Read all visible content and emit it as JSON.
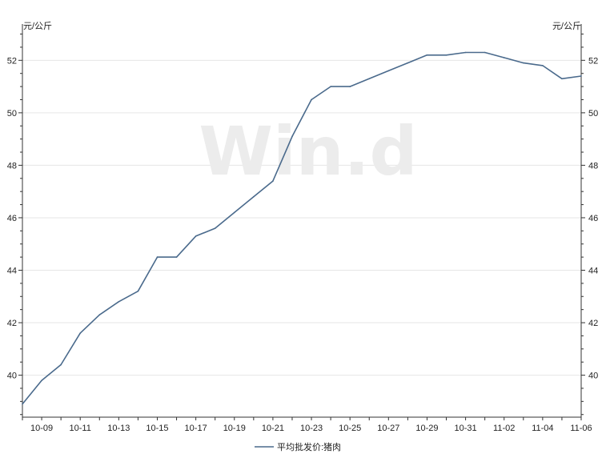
{
  "chart_data": {
    "type": "line",
    "watermark": "Win.d",
    "left_unit": "元/公斤",
    "right_unit": "元/公斤",
    "ylim": [
      38.4,
      53.2
    ],
    "yticks": [
      40,
      42,
      44,
      46,
      48,
      50,
      52
    ],
    "ytick_labels": [
      "40",
      "42",
      "44",
      "46",
      "48",
      "50",
      "52"
    ],
    "grid": true,
    "legend_position": "bottom",
    "xtick_labels": [
      "10-09",
      "10-11",
      "10-13",
      "10-15",
      "10-17",
      "10-19",
      "10-21",
      "10-23",
      "10-25",
      "10-27",
      "10-29",
      "10-31",
      "11-02",
      "11-04",
      "11-06"
    ],
    "series": [
      {
        "name": "平均批发价:猪肉",
        "color": "#4a6a8c",
        "x": [
          "10-08",
          "10-09",
          "10-10",
          "10-11",
          "10-12",
          "10-13",
          "10-14",
          "10-15",
          "10-16",
          "10-17",
          "10-18",
          "10-19",
          "10-20",
          "10-21",
          "10-22",
          "10-23",
          "10-24",
          "10-25",
          "10-26",
          "10-27",
          "10-28",
          "10-29",
          "10-30",
          "10-31",
          "11-01",
          "11-02",
          "11-03",
          "11-04",
          "11-05",
          "11-06"
        ],
        "values": [
          38.9,
          39.8,
          40.4,
          41.6,
          42.3,
          42.8,
          43.2,
          44.5,
          44.5,
          45.3,
          45.6,
          46.2,
          46.8,
          47.4,
          49.1,
          50.5,
          51.0,
          51.0,
          51.3,
          51.6,
          51.9,
          52.2,
          52.2,
          52.3,
          52.3,
          52.1,
          51.9,
          51.8,
          51.3,
          51.4
        ]
      }
    ]
  }
}
